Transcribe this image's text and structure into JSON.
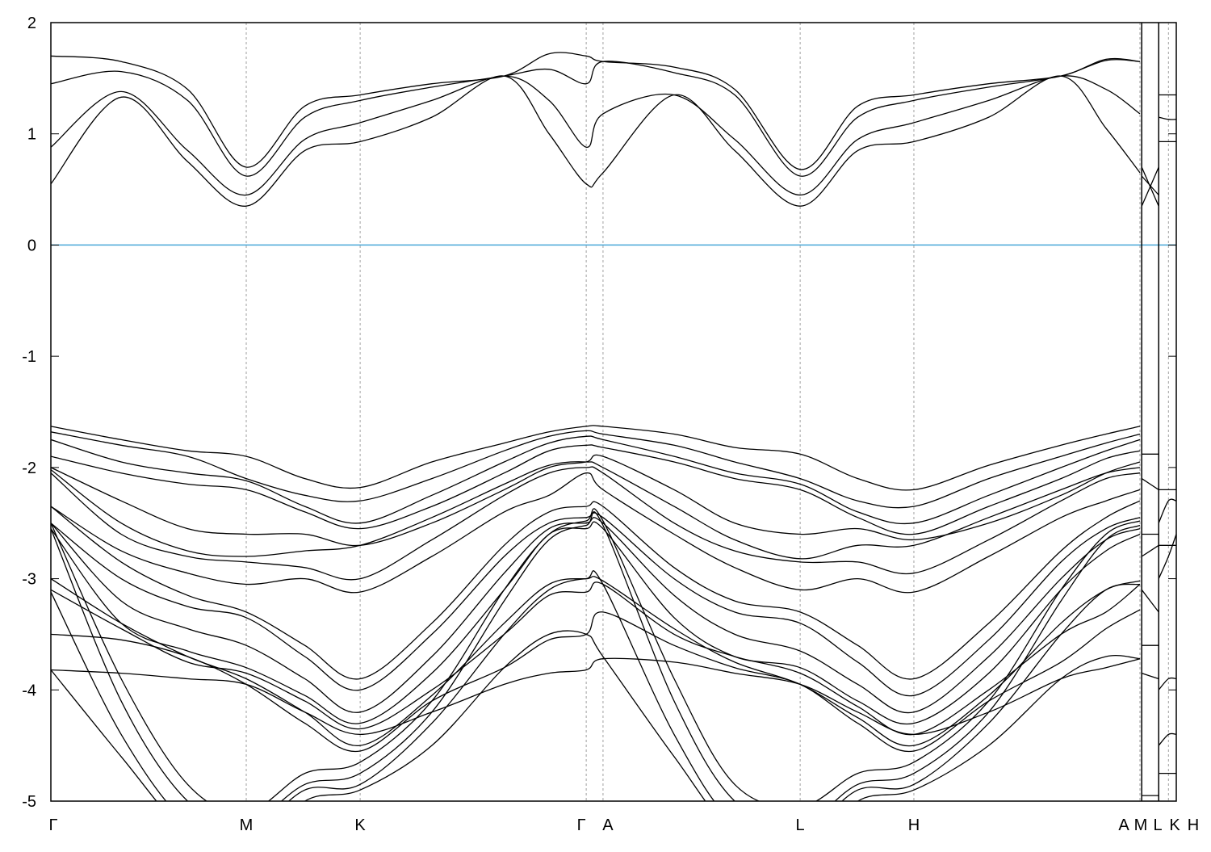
{
  "chart_data": {
    "type": "line",
    "title": "",
    "xlabel": "",
    "ylabel": "",
    "ylim": [
      -5,
      2
    ],
    "xlim": [
      0,
      5.76
    ],
    "yticks": [
      "-5",
      "-4",
      "-3",
      "-2",
      "-1",
      "0",
      "1",
      "2"
    ],
    "xticks": [
      {
        "label": "Γ",
        "x": 0
      },
      {
        "label": "M",
        "x": 1.0
      },
      {
        "label": "K",
        "x": 1.583
      },
      {
        "label": "Γ",
        "x": 2.74
      },
      {
        "label": "A",
        "x": 2.826
      },
      {
        "label": "L",
        "x": 3.835
      },
      {
        "label": "H",
        "x": 4.417
      },
      {
        "label": "A",
        "x": 5.574
      },
      {
        "label": "M",
        "x": 5.583
      },
      {
        "label": "L",
        "x": 5.67
      },
      {
        "label": "K",
        "x": 5.72
      },
      {
        "label": "H",
        "x": 5.76
      }
    ],
    "grid": "vertical dashed at high-symmetry points",
    "fermi_level": 0,
    "colors": {
      "bands": "#000000",
      "fermi": "#4aa8d8",
      "grid": "#a0a0a0"
    },
    "k": [
      0,
      0.36,
      0.7,
      1.0,
      1.3,
      1.583,
      1.95,
      2.32,
      2.55,
      2.74,
      2.826,
      3.19,
      3.5,
      3.835,
      4.13,
      4.417,
      4.8,
      5.17,
      5.4,
      5.574
    ],
    "bands": [
      [
        0.55,
        1.33,
        0.75,
        0.35,
        0.85,
        0.93,
        1.15,
        1.52,
        1.0,
        0.55,
        0.65,
        1.35,
        0.85,
        0.35,
        0.85,
        0.93,
        1.15,
        1.52,
        1.05,
        0.65
      ],
      [
        0.88,
        1.38,
        0.85,
        0.45,
        0.95,
        1.1,
        1.3,
        1.52,
        1.3,
        0.88,
        1.18,
        1.35,
        0.95,
        0.45,
        0.95,
        1.1,
        1.3,
        1.52,
        1.4,
        1.18
      ],
      [
        1.45,
        1.56,
        1.3,
        0.62,
        1.15,
        1.3,
        1.42,
        1.52,
        1.58,
        1.45,
        1.65,
        1.55,
        1.35,
        0.62,
        1.15,
        1.3,
        1.42,
        1.52,
        1.66,
        1.65
      ],
      [
        1.7,
        1.65,
        1.4,
        0.7,
        1.25,
        1.35,
        1.45,
        1.52,
        1.72,
        1.7,
        1.65,
        1.6,
        1.4,
        0.68,
        1.25,
        1.35,
        1.45,
        1.52,
        1.67,
        1.65
      ],
      [
        -1.63,
        -1.75,
        -1.85,
        -1.9,
        -2.1,
        -2.18,
        -1.95,
        -1.78,
        -1.68,
        -1.63,
        -1.63,
        -1.7,
        -1.82,
        -1.88,
        -2.1,
        -2.2,
        -1.98,
        -1.8,
        -1.7,
        -1.63
      ],
      [
        -1.68,
        -1.8,
        -1.9,
        -2.1,
        -2.25,
        -2.3,
        -2.1,
        -1.85,
        -1.72,
        -1.67,
        -1.7,
        -1.8,
        -1.95,
        -2.1,
        -2.3,
        -2.35,
        -2.1,
        -1.9,
        -1.78,
        -1.7
      ],
      [
        -1.75,
        -1.95,
        -2.05,
        -2.12,
        -2.35,
        -2.5,
        -2.25,
        -1.95,
        -1.78,
        -1.72,
        -1.75,
        -1.9,
        -2.05,
        -2.15,
        -2.4,
        -2.5,
        -2.25,
        -2.0,
        -1.85,
        -1.75
      ],
      [
        -1.9,
        -2.05,
        -2.15,
        -2.2,
        -2.4,
        -2.55,
        -2.35,
        -2.05,
        -1.85,
        -1.8,
        -1.82,
        -1.95,
        -2.1,
        -2.2,
        -2.45,
        -2.6,
        -2.35,
        -2.1,
        -1.92,
        -1.85
      ],
      [
        -2.0,
        -2.3,
        -2.55,
        -2.6,
        -2.6,
        -2.7,
        -2.5,
        -2.2,
        -2.0,
        -1.95,
        -1.9,
        -2.2,
        -2.5,
        -2.6,
        -2.55,
        -2.65,
        -2.5,
        -2.25,
        -2.05,
        -1.95
      ],
      [
        -2.02,
        -2.5,
        -2.75,
        -2.8,
        -2.75,
        -2.7,
        -2.45,
        -2.15,
        -1.98,
        -1.95,
        -2.0,
        -2.35,
        -2.65,
        -2.82,
        -2.7,
        -2.7,
        -2.45,
        -2.2,
        -2.05,
        -2.0
      ],
      [
        -2.05,
        -2.6,
        -2.8,
        -2.85,
        -2.9,
        -3.0,
        -2.65,
        -2.25,
        -2.05,
        -2.0,
        -2.05,
        -2.5,
        -2.75,
        -2.85,
        -2.85,
        -2.95,
        -2.65,
        -2.3,
        -2.1,
        -2.05
      ],
      [
        -2.35,
        -2.75,
        -2.95,
        -3.05,
        -3.0,
        -3.12,
        -2.8,
        -2.4,
        -2.25,
        -2.05,
        -2.2,
        -2.6,
        -2.9,
        -3.1,
        -3.0,
        -3.12,
        -2.8,
        -2.45,
        -2.3,
        -2.2
      ],
      [
        -2.35,
        -2.85,
        -3.15,
        -3.3,
        -3.6,
        -3.9,
        -3.4,
        -2.7,
        -2.4,
        -2.35,
        -2.35,
        -2.9,
        -3.2,
        -3.3,
        -3.6,
        -3.9,
        -3.4,
        -2.75,
        -2.45,
        -2.3
      ],
      [
        -2.5,
        -3.0,
        -3.25,
        -3.35,
        -3.7,
        -4.0,
        -3.5,
        -2.8,
        -2.5,
        -2.45,
        -2.45,
        -3.0,
        -3.3,
        -3.4,
        -3.75,
        -4.05,
        -3.55,
        -2.85,
        -2.55,
        -2.45
      ],
      [
        -2.5,
        -3.2,
        -3.45,
        -3.6,
        -3.9,
        -4.2,
        -3.7,
        -2.95,
        -2.55,
        -2.5,
        -2.5,
        -3.15,
        -3.5,
        -3.65,
        -3.95,
        -4.2,
        -3.7,
        -3.0,
        -2.65,
        -2.55
      ],
      [
        -2.55,
        -3.4,
        -3.65,
        -3.8,
        -4.05,
        -4.3,
        -3.85,
        -3.1,
        -2.6,
        -2.55,
        -2.55,
        -3.35,
        -3.7,
        -3.8,
        -4.1,
        -4.3,
        -3.85,
        -3.1,
        -2.75,
        -2.6
      ],
      [
        -3.1,
        -3.45,
        -3.75,
        -3.85,
        -4.1,
        -4.35,
        -4.0,
        -3.5,
        -3.15,
        -3.12,
        -3.05,
        -3.5,
        -3.7,
        -3.85,
        -4.15,
        -4.4,
        -4.0,
        -3.5,
        -3.3,
        -3.05
      ],
      [
        -3.0,
        -3.4,
        -3.7,
        -3.9,
        -4.2,
        -4.5,
        -4.05,
        -3.4,
        -3.05,
        -3.0,
        -3.02,
        -3.45,
        -3.75,
        -3.95,
        -4.25,
        -4.5,
        -4.05,
        -3.4,
        -3.1,
        -3.02
      ],
      [
        -3.5,
        -3.55,
        -3.7,
        -3.95,
        -4.3,
        -4.55,
        -4.1,
        -3.8,
        -3.55,
        -3.5,
        -3.3,
        -3.6,
        -3.8,
        -3.95,
        -4.3,
        -4.55,
        -4.1,
        -3.75,
        -3.45,
        -3.28
      ],
      [
        -3.82,
        -3.85,
        -3.9,
        -3.95,
        -4.2,
        -4.4,
        -4.2,
        -3.95,
        -3.85,
        -3.82,
        -3.72,
        -3.75,
        -3.85,
        -3.95,
        -4.2,
        -4.4,
        -4.2,
        -3.9,
        -3.8,
        -3.72
      ],
      [
        -2.5,
        -3.9,
        -4.85,
        -5.1,
        -4.75,
        -4.65,
        -4.1,
        -3.1,
        -2.6,
        -2.48,
        -2.48,
        -3.9,
        -4.85,
        -5.05,
        -4.75,
        -4.65,
        -4.1,
        -3.1,
        -2.6,
        -2.48
      ],
      [
        -2.55,
        -4.1,
        -5.0,
        -5.2,
        -4.85,
        -4.75,
        -4.2,
        -3.2,
        -2.65,
        -2.52,
        -2.52,
        -4.1,
        -5.0,
        -5.2,
        -4.85,
        -4.75,
        -4.2,
        -3.2,
        -2.65,
        -2.52
      ],
      [
        -3.12,
        -4.4,
        -5.2,
        -5.3,
        -4.9,
        -4.85,
        -4.3,
        -3.5,
        -3.1,
        -3.0,
        -3.05,
        -4.4,
        -5.2,
        -5.3,
        -4.9,
        -4.85,
        -4.3,
        -3.5,
        -3.1,
        -3.05
      ],
      [
        -3.82,
        -4.6,
        -5.3,
        -5.5,
        -5.0,
        -4.9,
        -4.5,
        -3.8,
        -3.5,
        -3.5,
        -3.7,
        -4.6,
        -5.3,
        -5.5,
        -5.0,
        -4.9,
        -4.5,
        -3.9,
        -3.7,
        -3.72
      ]
    ],
    "side_k_ML": [
      5.583,
      5.67
    ],
    "side_bands_ML": [
      [
        0.35,
        0.7
      ],
      [
        0.7,
        0.35
      ],
      [
        0.62,
        0.45
      ],
      [
        -1.88,
        -1.88
      ],
      [
        -2.1,
        -2.2
      ],
      [
        -2.6,
        -2.6
      ],
      [
        -2.8,
        -2.7
      ],
      [
        -3.1,
        -3.3
      ],
      [
        -3.6,
        -3.6
      ],
      [
        -3.85,
        -3.9
      ],
      [
        -4.95,
        -4.95
      ]
    ],
    "side_k_LKH": [
      5.67,
      5.72,
      5.76
    ],
    "side_bands_LKH": [
      [
        0.93,
        0.93,
        0.93
      ],
      [
        1.35,
        1.35,
        1.35
      ],
      [
        1.15,
        1.13,
        1.13
      ],
      [
        -2.2,
        -2.2,
        -2.2
      ],
      [
        -2.5,
        -2.3,
        -2.3
      ],
      [
        -2.7,
        -2.7,
        -2.7
      ],
      [
        -3.0,
        -2.8,
        -2.6
      ],
      [
        -4.0,
        -3.9,
        -3.9
      ],
      [
        -4.5,
        -4.4,
        -4.4
      ],
      [
        -4.75,
        -4.75,
        -4.75
      ]
    ]
  }
}
